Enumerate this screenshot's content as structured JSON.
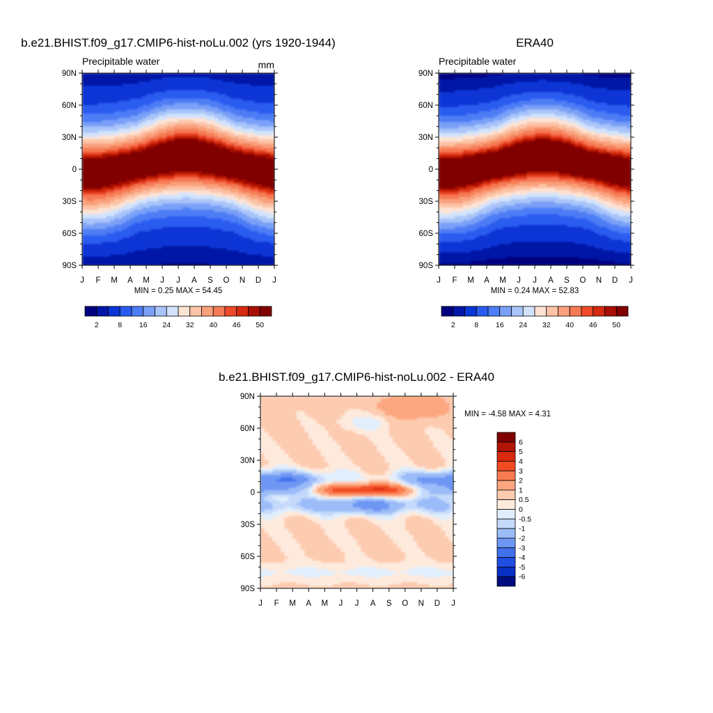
{
  "chart_data": [
    {
      "type": "heatmap",
      "title": "b.e21.BHIST.f09_g17.CMIP6-hist-noLu.002 (yrs 1920-1944)",
      "subtitle_left": "Precipitable water",
      "subtitle_right": "mm",
      "x_tick_labels": [
        "J",
        "F",
        "M",
        "A",
        "M",
        "J",
        "J",
        "A",
        "S",
        "O",
        "N",
        "D",
        "J"
      ],
      "y_tick_labels": [
        "90N",
        "60N",
        "30N",
        "0",
        "30S",
        "60S",
        "90S"
      ],
      "y_ticks": [
        90,
        60,
        30,
        0,
        -30,
        -60,
        -90
      ],
      "xlim": [
        0,
        12
      ],
      "ylim": [
        -90,
        90
      ],
      "stats": {
        "min_label": "MIN =",
        "min": "0.25",
        "max_label": "MAX =",
        "max": "54.45"
      },
      "colorbar": {
        "orientation": "horizontal",
        "levels": [
          2,
          4,
          8,
          12,
          16,
          20,
          24,
          28,
          32,
          36,
          40,
          44,
          46,
          48,
          50
        ],
        "labels": [
          "2",
          "8",
          "16",
          "24",
          "32",
          "40",
          "46",
          "50"
        ],
        "colors": [
          "#00007f",
          "#0016a6",
          "#0a36d6",
          "#2a5cf0",
          "#4d7df5",
          "#7aa0f7",
          "#a8c4f9",
          "#d2e3fb",
          "#fde3d4",
          "#fcc3a6",
          "#f9a07c",
          "#f57b54",
          "#ee4a2a",
          "#d42a10",
          "#a80f04",
          "#800000"
        ]
      }
    },
    {
      "type": "heatmap",
      "title": "ERA40",
      "subtitle_left": "Precipitable water",
      "x_tick_labels": [
        "J",
        "F",
        "M",
        "A",
        "M",
        "J",
        "J",
        "A",
        "S",
        "O",
        "N",
        "D",
        "J"
      ],
      "y_tick_labels": [
        "90N",
        "60N",
        "30N",
        "0",
        "30S",
        "60S",
        "90S"
      ],
      "y_ticks": [
        90,
        60,
        30,
        0,
        -30,
        -60,
        -90
      ],
      "xlim": [
        0,
        12
      ],
      "ylim": [
        -90,
        90
      ],
      "stats": {
        "min_label": "MIN =",
        "min": "0.24",
        "max_label": "MAX =",
        "max": "52.83"
      },
      "colorbar": {
        "orientation": "horizontal",
        "labels": [
          "2",
          "8",
          "16",
          "24",
          "32",
          "40",
          "46",
          "50"
        ]
      }
    },
    {
      "type": "heatmap",
      "title": "b.e21.BHIST.f09_g17.CMIP6-hist-noLu.002 - ERA40",
      "x_tick_labels": [
        "J",
        "F",
        "M",
        "A",
        "M",
        "J",
        "J",
        "A",
        "S",
        "O",
        "N",
        "D",
        "J"
      ],
      "y_tick_labels": [
        "90N",
        "60N",
        "30N",
        "0",
        "30S",
        "60S",
        "90S"
      ],
      "y_ticks": [
        90,
        60,
        30,
        0,
        -30,
        -60,
        -90
      ],
      "xlim": [
        0,
        12
      ],
      "ylim": [
        -90,
        90
      ],
      "stats": {
        "min_label": "MIN =",
        "min": "-4.58",
        "max_label": "MAX =",
        "max": "4.31"
      },
      "colorbar": {
        "orientation": "vertical",
        "labels": [
          "6",
          "5",
          "4",
          "3",
          "2",
          "1",
          "0.5",
          "0",
          "-0.5",
          "-1",
          "-2",
          "-3",
          "-4",
          "-5",
          "-6"
        ],
        "colors": [
          "#800000",
          "#b01505",
          "#da2a0e",
          "#f24b22",
          "#fa7a50",
          "#fca77f",
          "#fdcbb0",
          "#feeadd",
          "#e0eefd",
          "#c4d9fb",
          "#9bbcf8",
          "#6e97f4",
          "#4271ee",
          "#1f4ee2",
          "#0a2fc4",
          "#000c80"
        ]
      }
    }
  ]
}
